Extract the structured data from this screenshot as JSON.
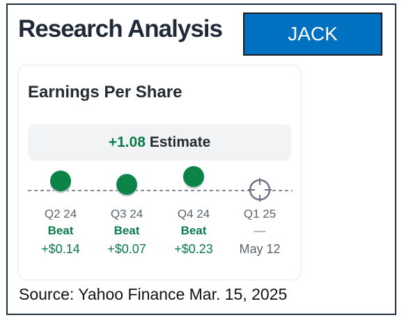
{
  "header": {
    "title": "Research Analysis",
    "ticker": "JACK"
  },
  "card": {
    "title": "Earnings Per Share",
    "estimate": {
      "value": "+1.08",
      "label": "Estimate"
    },
    "quarters": [
      {
        "label": "Q2 24",
        "status": "Beat",
        "amount": "+$0.14",
        "beat_value": 0.14
      },
      {
        "label": "Q3 24",
        "status": "Beat",
        "amount": "+$0.07",
        "beat_value": 0.07
      },
      {
        "label": "Q4 24",
        "status": "Beat",
        "amount": "+$0.23",
        "beat_value": 0.23
      },
      {
        "label": "Q1 25",
        "status": "—",
        "amount": "May 12",
        "beat_value": null
      }
    ],
    "colors": {
      "beat": "#0a7a4a",
      "dot": "#0c8447",
      "pending": "#6b7280"
    }
  },
  "footer": {
    "source": "Source: Yahoo Finance  Mar. 15, 2025"
  }
}
